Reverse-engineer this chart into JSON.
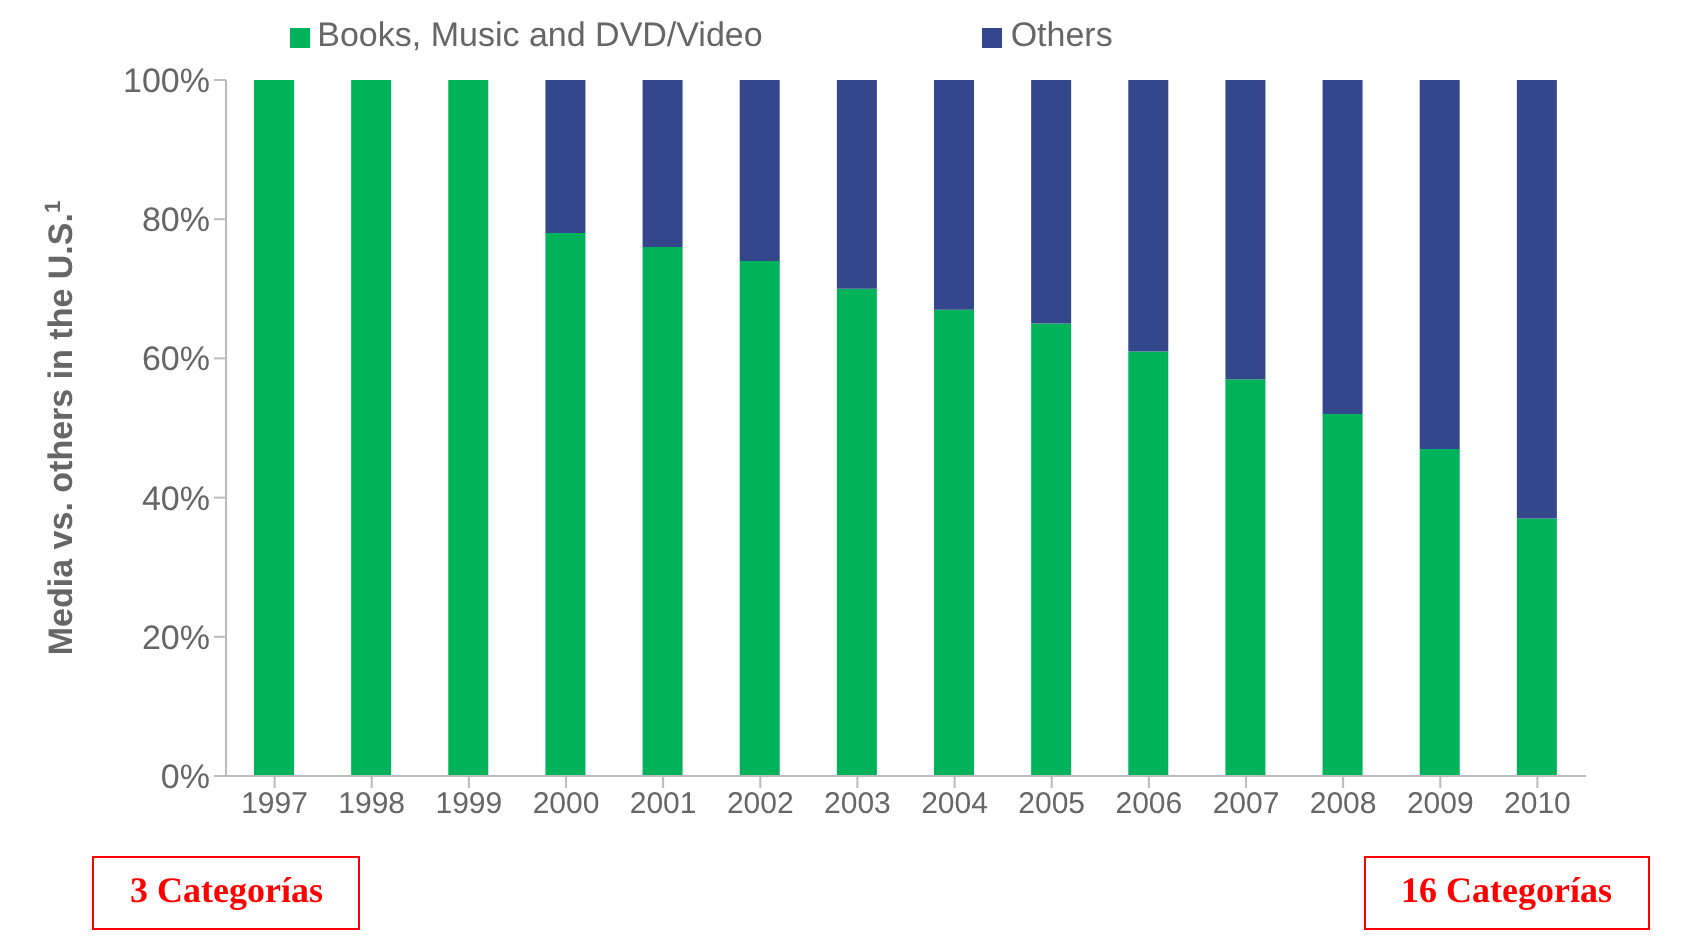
{
  "chart_data": {
    "type": "bar",
    "stacked": true,
    "categories": [
      "1997",
      "1998",
      "1999",
      "2000",
      "2001",
      "2002",
      "2003",
      "2004",
      "2005",
      "2006",
      "2007",
      "2008",
      "2009",
      "2010"
    ],
    "series": [
      {
        "name": "Books, Music and DVD/Video",
        "color": "#00b25a",
        "values": [
          100,
          100,
          100,
          78,
          76,
          74,
          70,
          67,
          65,
          61,
          57,
          52,
          47,
          37
        ]
      },
      {
        "name": "Others",
        "color": "#35478c",
        "values": [
          0,
          0,
          0,
          22,
          24,
          26,
          30,
          33,
          35,
          39,
          43,
          48,
          53,
          63
        ]
      }
    ],
    "ylabel": "Media vs. others in the U.S.$^{1}$",
    "ylim": [
      0,
      100
    ],
    "yticks": [
      {
        "value": 0,
        "label": "0%"
      },
      {
        "value": 20,
        "label": "20%"
      },
      {
        "value": 40,
        "label": "40%"
      },
      {
        "value": 60,
        "label": "60%"
      },
      {
        "value": 80,
        "label": "80%"
      },
      {
        "value": 100,
        "label": "100%"
      }
    ],
    "grid": false,
    "legend": "top",
    "annotations": [
      "3 Categorías",
      "16 Categorías"
    ]
  }
}
